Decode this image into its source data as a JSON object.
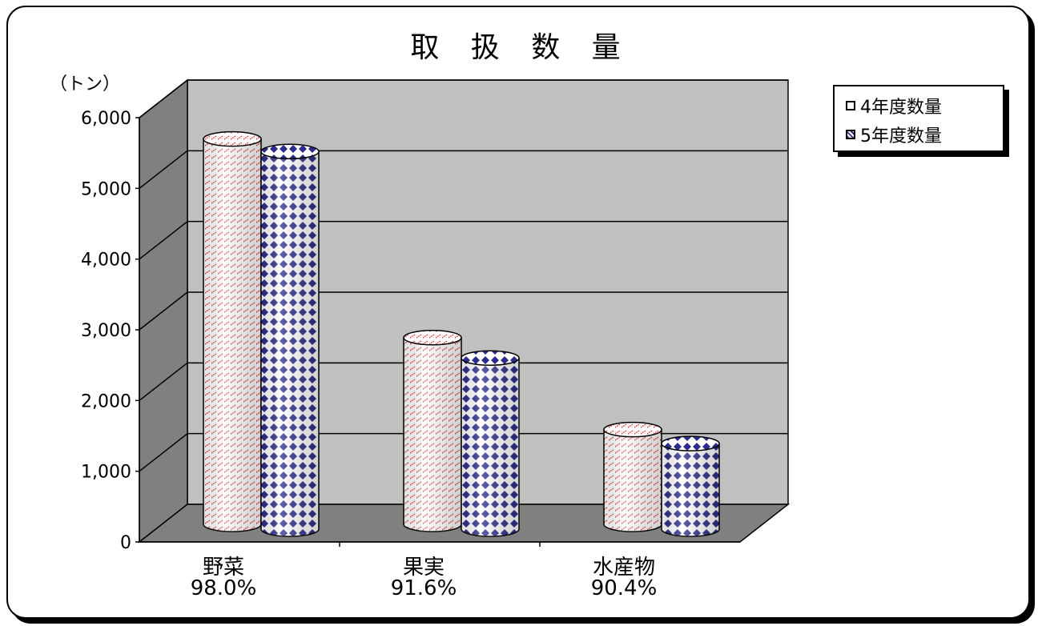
{
  "chart_data": {
    "type": "bar",
    "title": "取 扱 数 量",
    "unit_label": "（トン）",
    "categories": [
      "野菜",
      "果実",
      "水産物"
    ],
    "category_sublabels": [
      "98.0%",
      "91.6%",
      "90.4%"
    ],
    "series": [
      {
        "name": "4年度数量",
        "values": [
          5450,
          2640,
          1340
        ]
      },
      {
        "name": "5年度数量",
        "values": [
          5340,
          2420,
          1210
        ]
      }
    ],
    "ylim": [
      0,
      6000
    ],
    "yticks": [
      "0",
      "1,000",
      "2,000",
      "3,000",
      "4,000",
      "5,000",
      "6,000"
    ],
    "style": "3d-cylinder",
    "grid": true,
    "legend_position": "top-right",
    "colors": {
      "series0_pattern": "#e53030",
      "series1_pattern": "#2c2c8c",
      "wall": "#c0c0c0",
      "side_wall": "#808080",
      "floor": "#808080"
    }
  }
}
